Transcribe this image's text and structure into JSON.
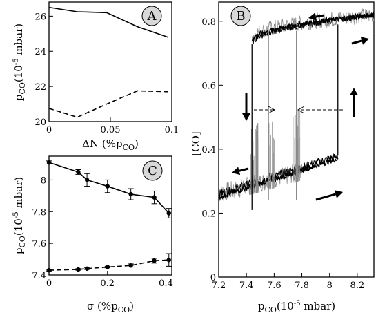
{
  "chart_data": [
    {
      "panel": "A",
      "type": "line",
      "xlabel": "ΔN (%p",
      "xlabel_sub": "CO",
      "xlabel_tail": ")",
      "ylabel_base": "p",
      "ylabel_sub": "CO",
      "ylabel_mid": "(10",
      "ylabel_sup": "-5",
      "ylabel_tail": " mbar)",
      "xlim": [
        0,
        0.1
      ],
      "ylim": [
        20,
        26.8
      ],
      "xticks": [
        "0",
        "0.05",
        "0.1"
      ],
      "xtick_values": [
        0,
        0.05,
        0.1
      ],
      "yticks": [
        "20",
        "22",
        "24",
        "26"
      ],
      "ytick_values": [
        20,
        22,
        24,
        26
      ],
      "series": [
        {
          "style": "solid",
          "x": [
            0,
            0.023,
            0.047,
            0.072,
            0.097
          ],
          "y": [
            26.5,
            26.25,
            26.2,
            25.4,
            24.8
          ]
        },
        {
          "style": "dashed",
          "x": [
            0,
            0.023,
            0.047,
            0.072,
            0.097
          ],
          "y": [
            20.75,
            20.25,
            21.0,
            21.75,
            21.7
          ]
        }
      ]
    },
    {
      "panel": "B",
      "type": "line",
      "xlabel_base": "p",
      "xlabel_sub": "CO",
      "xlabel_mid": "(10",
      "xlabel_sup": "-5",
      "xlabel_tail": " mbar)",
      "ylabel": "[CO]",
      "xlim": [
        7.2,
        8.32
      ],
      "ylim": [
        0,
        0.86
      ],
      "xticks": [
        "7.2",
        "7.4",
        "7.6",
        "7.8",
        "8",
        "8.2"
      ],
      "xtick_values": [
        7.2,
        7.4,
        7.6,
        7.8,
        8.0,
        8.2
      ],
      "yticks": [
        "0",
        "0.2",
        "0.4",
        "0.6",
        "0.8"
      ],
      "ytick_values": [
        0,
        0.2,
        0.4,
        0.6,
        0.8
      ],
      "branches": {
        "lower_start": [
          7.2,
          0.26
        ],
        "lower_end": [
          8.06,
          0.38
        ],
        "upper_start": [
          7.44,
          0.73
        ],
        "upper_end": [
          8.32,
          0.82
        ]
      },
      "transitions_up_x": [
        8.06
      ],
      "transitions_down_x": [
        7.44,
        7.56,
        7.76
      ],
      "noisy_transition_x": [
        7.46,
        7.58,
        7.76
      ]
    },
    {
      "panel": "C",
      "type": "line",
      "xlabel": "σ (%p",
      "xlabel_sub": "CO",
      "xlabel_tail": ")",
      "ylabel_base": "p",
      "ylabel_sub": "CO",
      "ylabel_mid": "(10",
      "ylabel_sup": "-5",
      "ylabel_tail": " mbar)",
      "xlim": [
        0,
        0.42
      ],
      "ylim": [
        7.4,
        8.15
      ],
      "xticks": [
        "0",
        "0.2",
        "0.4"
      ],
      "xtick_values": [
        0,
        0.2,
        0.4
      ],
      "yticks": [
        "7.4",
        "7.6",
        "7.8",
        "8"
      ],
      "ytick_values": [
        7.4,
        7.6,
        7.8,
        8.0
      ],
      "series": [
        {
          "style": "solid",
          "x": [
            0,
            0.1,
            0.13,
            0.2,
            0.28,
            0.36,
            0.41
          ],
          "y": [
            8.11,
            8.05,
            8.0,
            7.96,
            7.91,
            7.89,
            7.79
          ],
          "err": [
            0.01,
            0.015,
            0.04,
            0.04,
            0.035,
            0.04,
            0.03
          ]
        },
        {
          "style": "dashed",
          "x": [
            0,
            0.1,
            0.13,
            0.2,
            0.28,
            0.36,
            0.41
          ],
          "y": [
            7.43,
            7.435,
            7.44,
            7.45,
            7.46,
            7.49,
            7.495
          ],
          "err": [
            0.005,
            0.005,
            0.005,
            0.005,
            0.01,
            0.015,
            0.04
          ]
        }
      ]
    }
  ]
}
